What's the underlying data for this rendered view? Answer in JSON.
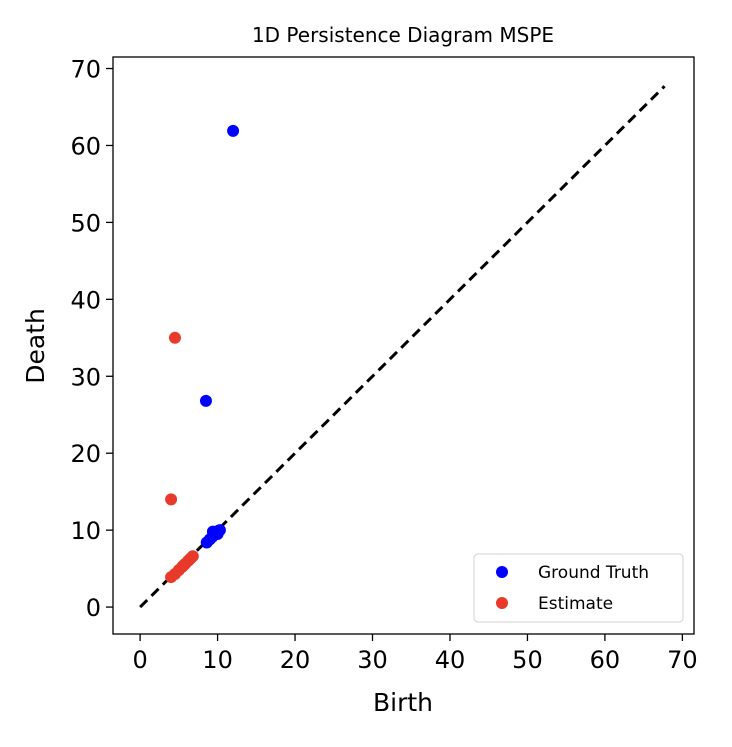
{
  "chart_data": {
    "type": "scatter",
    "title": "1D Persistence Diagram MSPE",
    "xlabel": "Birth",
    "ylabel": "Death",
    "xlim": [
      -3.5,
      71.5
    ],
    "ylim": [
      -3.5,
      71.5
    ],
    "xticks": [
      0,
      10,
      20,
      30,
      40,
      50,
      60,
      70
    ],
    "yticks": [
      0,
      10,
      20,
      30,
      40,
      50,
      60,
      70
    ],
    "grid": false,
    "legend_position": "lower-right",
    "diagonal": {
      "from": [
        0,
        0
      ],
      "to": [
        67.7,
        67.7
      ],
      "style": "dashed",
      "color": "#000000"
    },
    "series": [
      {
        "name": "Ground Truth",
        "color": "#0000ff",
        "points": [
          [
            12.0,
            61.9
          ],
          [
            8.5,
            26.8
          ],
          [
            8.6,
            8.4
          ],
          [
            9.0,
            8.8
          ],
          [
            9.3,
            9.1
          ],
          [
            9.5,
            9.4
          ],
          [
            9.8,
            9.7
          ],
          [
            10.1,
            9.9
          ],
          [
            10.3,
            10.0
          ],
          [
            10.0,
            9.5
          ],
          [
            9.4,
            9.8
          ]
        ]
      },
      {
        "name": "Estimate",
        "color": "#e8392a",
        "points": [
          [
            4.5,
            35.0
          ],
          [
            4.0,
            14.0
          ],
          [
            4.0,
            3.9
          ],
          [
            4.5,
            4.3
          ],
          [
            5.0,
            4.8
          ],
          [
            5.4,
            5.2
          ],
          [
            5.8,
            5.6
          ],
          [
            6.2,
            6.0
          ],
          [
            6.5,
            6.3
          ],
          [
            6.8,
            6.6
          ],
          [
            5.6,
            5.4
          ]
        ]
      }
    ]
  }
}
